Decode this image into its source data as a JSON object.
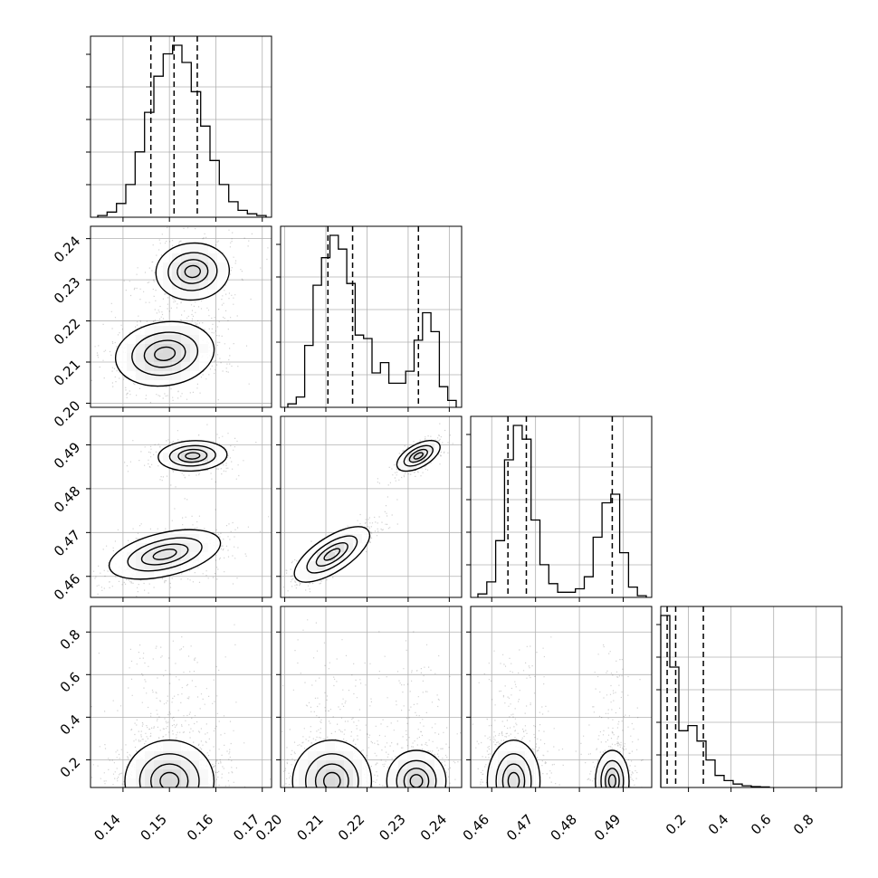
{
  "chart_data": {
    "type": "corner",
    "grid": true,
    "hist_bins": 20,
    "dims": [
      {
        "range": [
          0.133,
          0.172
        ],
        "ticks": [
          "0.14",
          "0.15",
          "0.16",
          "0.17"
        ],
        "tick_values": [
          0.14,
          0.15,
          0.16,
          0.17
        ],
        "quantiles": [
          0.146,
          0.151,
          0.156
        ],
        "mix": [
          {
            "w": 1.0,
            "mu": 0.151,
            "sd": 0.0048
          }
        ]
      },
      {
        "range": [
          0.199,
          0.243
        ],
        "ticks": [
          "0.20",
          "0.21",
          "0.22",
          "0.23",
          "0.24"
        ],
        "tick_values": [
          0.2,
          0.21,
          0.22,
          0.23,
          0.24
        ],
        "quantiles": [
          0.2105,
          0.2165,
          0.2325
        ],
        "mix": [
          {
            "w": 0.62,
            "mu": 0.212,
            "sd": 0.0035
          },
          {
            "w": 0.38,
            "mu": 0.232,
            "sd": 0.003
          }
        ]
      },
      {
        "range": [
          0.4552,
          0.4965
        ],
        "ticks": [
          "0.46",
          "0.47",
          "0.48",
          "0.49"
        ],
        "tick_values": [
          0.46,
          0.47,
          0.48,
          0.49
        ],
        "quantiles": [
          0.4637,
          0.4679,
          0.4875
        ],
        "mix": [
          {
            "w": 0.62,
            "mu": 0.465,
            "sd": 0.0025
          },
          {
            "w": 0.38,
            "mu": 0.4875,
            "sd": 0.0015
          }
        ]
      },
      {
        "range": [
          0.07,
          0.92
        ],
        "ticks": [
          "0.2",
          "0.4",
          "0.6",
          "0.8"
        ],
        "tick_values": [
          0.2,
          0.4,
          0.6,
          0.8
        ],
        "quantiles": [
          0.1,
          0.14,
          0.27
        ],
        "mix": [
          {
            "w": 1.0,
            "mu": 0.12,
            "sd": 0.1,
            "skew": "exp"
          }
        ]
      }
    ],
    "histograms": [
      {
        "dim": 0,
        "counts": [
          0.01,
          0.03,
          0.08,
          0.19,
          0.38,
          0.61,
          0.82,
          0.95,
          1.0,
          0.9,
          0.73,
          0.53,
          0.33,
          0.19,
          0.09,
          0.04,
          0.02,
          0.01
        ]
      },
      {
        "dim": 1,
        "counts": [
          0.02,
          0.06,
          0.36,
          0.71,
          0.87,
          1.0,
          0.92,
          0.72,
          0.42,
          0.4,
          0.2,
          0.26,
          0.14,
          0.14,
          0.21,
          0.39,
          0.55,
          0.44,
          0.12,
          0.04
        ]
      },
      {
        "dim": 2,
        "counts": [
          0.02,
          0.09,
          0.33,
          0.8,
          1.0,
          0.92,
          0.45,
          0.19,
          0.08,
          0.03,
          0.03,
          0.05,
          0.12,
          0.35,
          0.55,
          0.6,
          0.26,
          0.06,
          0.01
        ]
      },
      {
        "dim": 3,
        "counts": [
          1.0,
          0.7,
          0.33,
          0.36,
          0.27,
          0.16,
          0.07,
          0.04,
          0.02,
          0.01,
          0.005,
          0.003
        ]
      }
    ],
    "pairs": [
      {
        "x": 0,
        "y": 1,
        "modes": [
          {
            "x": 0.149,
            "y": 0.212,
            "sx": 0.0042,
            "sy": 0.0035,
            "r": 0.2,
            "w": 0.62
          },
          {
            "x": 0.155,
            "y": 0.232,
            "sx": 0.0032,
            "sy": 0.003,
            "r": 0.1,
            "w": 0.38
          }
        ]
      },
      {
        "x": 0,
        "y": 2,
        "modes": [
          {
            "x": 0.149,
            "y": 0.465,
            "sx": 0.0045,
            "sy": 0.0025,
            "r": 0.45,
            "w": 0.62
          },
          {
            "x": 0.155,
            "y": 0.4875,
            "sx": 0.003,
            "sy": 0.0015,
            "r": 0.1,
            "w": 0.38
          }
        ]
      },
      {
        "x": 0,
        "y": 3,
        "modes": [
          {
            "x": 0.15,
            "y": 0.1,
            "sx": 0.004,
            "sy": 0.08,
            "r": 0.0,
            "w": 1.0
          }
        ]
      },
      {
        "x": 1,
        "y": 2,
        "modes": [
          {
            "x": 0.2115,
            "y": 0.465,
            "sx": 0.0035,
            "sy": 0.0025,
            "r": 0.85,
            "w": 0.62
          },
          {
            "x": 0.2325,
            "y": 0.4875,
            "sx": 0.002,
            "sy": 0.0015,
            "r": 0.7,
            "w": 0.38
          }
        ]
      },
      {
        "x": 1,
        "y": 3,
        "modes": [
          {
            "x": 0.2115,
            "y": 0.1,
            "sx": 0.004,
            "sy": 0.08,
            "r": 0.0,
            "w": 0.62
          },
          {
            "x": 0.232,
            "y": 0.1,
            "sx": 0.003,
            "sy": 0.06,
            "r": 0.0,
            "w": 0.38
          }
        ]
      },
      {
        "x": 2,
        "y": 3,
        "modes": [
          {
            "x": 0.465,
            "y": 0.1,
            "sx": 0.0025,
            "sy": 0.08,
            "r": 0.0,
            "w": 0.62
          },
          {
            "x": 0.4875,
            "y": 0.1,
            "sx": 0.0016,
            "sy": 0.06,
            "r": 0.0,
            "w": 0.38
          }
        ]
      }
    ]
  }
}
